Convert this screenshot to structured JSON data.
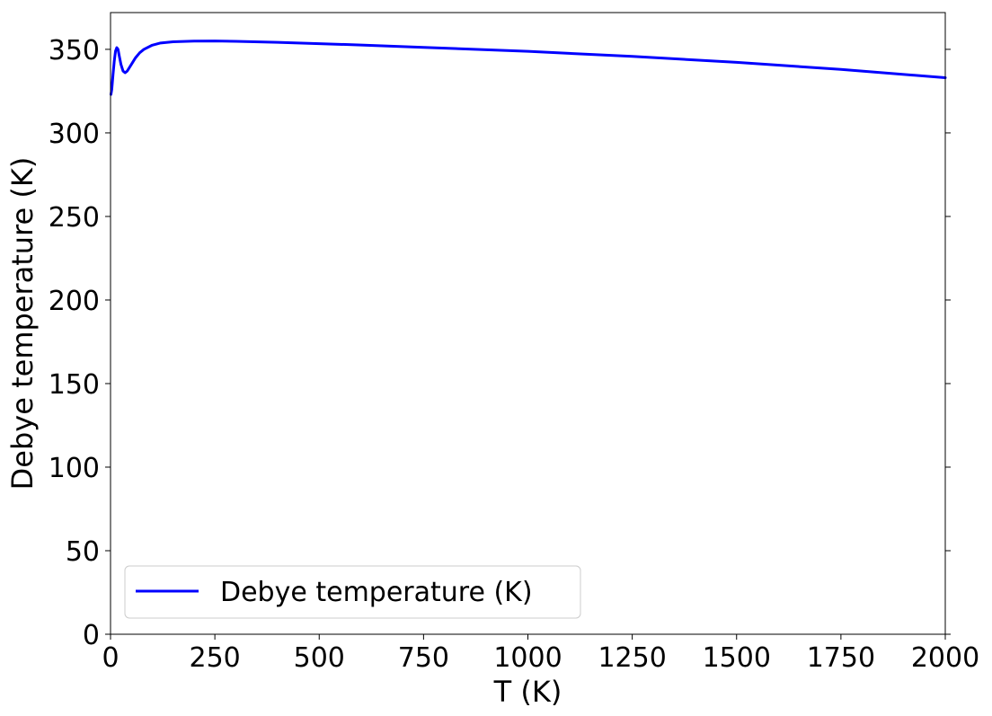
{
  "chart_data": {
    "type": "line",
    "title": "",
    "xlabel": "T (K)",
    "ylabel": "Debye temperature (K)",
    "xlim": [
      0,
      2000
    ],
    "ylim": [
      0,
      372
    ],
    "xticks": [
      "0",
      "250",
      "500",
      "750",
      "1000",
      "1250",
      "1500",
      "1750",
      "2000"
    ],
    "yticks": [
      "0",
      "50",
      "100",
      "150",
      "200",
      "250",
      "300",
      "350"
    ],
    "grid": false,
    "legend_position": "lower-left",
    "series": [
      {
        "name": "Debye temperature (K)",
        "color": "#0000ff",
        "x": [
          1,
          3,
          6,
          9,
          12,
          15,
          18,
          21,
          25,
          30,
          35,
          40,
          50,
          60,
          70,
          80,
          100,
          120,
          150,
          200,
          250,
          300,
          400,
          500,
          600,
          750,
          1000,
          1250,
          1500,
          1750,
          2000
        ],
        "y": [
          323,
          326,
          335,
          343,
          349,
          351,
          350,
          346,
          341,
          337,
          336,
          337,
          341,
          345,
          348,
          350,
          352.5,
          353.8,
          354.5,
          354.9,
          355,
          354.8,
          354.2,
          353.4,
          352.6,
          351.2,
          348.8,
          345.8,
          342.2,
          338,
          333
        ]
      }
    ]
  }
}
